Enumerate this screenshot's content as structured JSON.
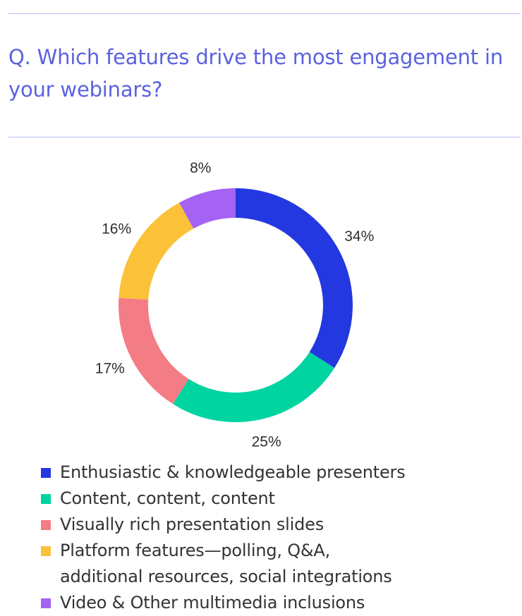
{
  "question": "Q. Which features drive the most engagement in your webinars?",
  "chart_data": {
    "type": "pie",
    "title": "",
    "categories": [
      "Enthusiastic & knowledgeable presenters",
      "Content, content, content",
      "Visually rich presentation slides",
      "Platform features—polling, Q&A, additional resources, social integrations",
      "Video & Other multimedia inclusions"
    ],
    "values": [
      34,
      25,
      17,
      16,
      8
    ],
    "labels": [
      "34%",
      "25%",
      "17%",
      "16%",
      "8%"
    ],
    "colors": [
      "#2338e0",
      "#00d4a1",
      "#f47c85",
      "#fbc139",
      "#a463f2"
    ],
    "donut": true,
    "legend": "bottom"
  },
  "legend": {
    "items": [
      {
        "lines": [
          "Enthusiastic & knowledgeable presenters"
        ],
        "color": "#2338e0"
      },
      {
        "lines": [
          "Content, content, content"
        ],
        "color": "#00d4a1"
      },
      {
        "lines": [
          "Visually rich presentation slides"
        ],
        "color": "#f47c85"
      },
      {
        "lines": [
          "Platform features—polling, Q&A,",
          "additional resources, social integrations"
        ],
        "color": "#fbc139"
      },
      {
        "lines": [
          "Video & Other multimedia inclusions"
        ],
        "color": "#a463f2"
      }
    ]
  }
}
